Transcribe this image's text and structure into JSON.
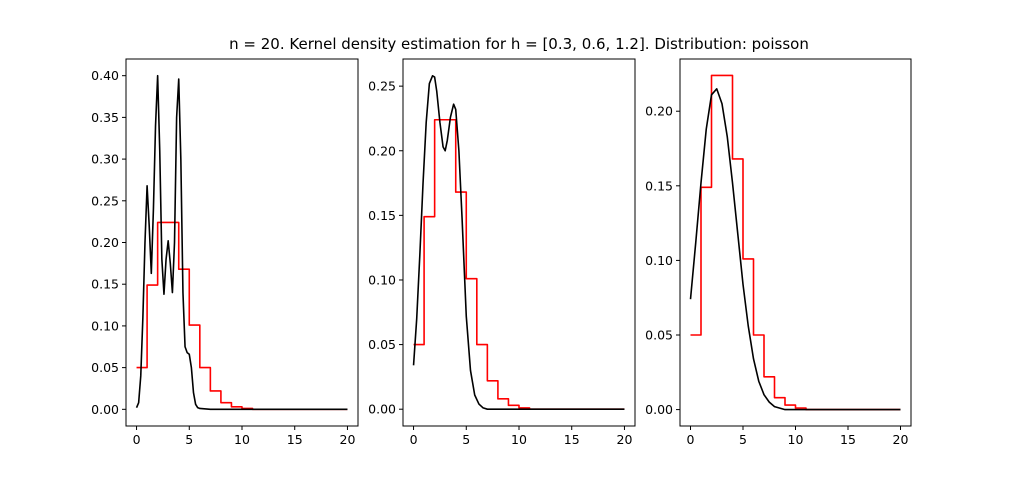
{
  "figure": {
    "title": "n = 20. Kernel density estimation for h = [0.3, 0.6, 1.2]. Distribution: poisson",
    "colors": {
      "pmf": "#ff0000",
      "kde": "#000000",
      "axes": "#000000",
      "background": "#ffffff"
    }
  },
  "chart_data": [
    {
      "type": "line",
      "bandwidth": 0.3,
      "xlim": [
        -1,
        21
      ],
      "ylim": [
        -0.02,
        0.42
      ],
      "xticks": [
        0,
        5,
        10,
        15,
        20
      ],
      "yticks": [
        0.0,
        0.05,
        0.1,
        0.15,
        0.2,
        0.25,
        0.3,
        0.35,
        0.4
      ],
      "ytick_labels": [
        "0.00",
        "0.05",
        "0.10",
        "0.15",
        "0.20",
        "0.25",
        "0.30",
        "0.35",
        "0.40"
      ],
      "series": [
        {
          "kind": "step",
          "color": "#ff0000",
          "x": [
            0,
            1,
            1,
            2,
            2,
            3,
            3,
            4,
            4,
            5,
            5,
            6,
            6,
            7,
            7,
            8,
            8,
            9,
            9,
            10,
            10,
            11,
            11,
            20
          ],
          "y": [
            0.05,
            0.05,
            0.149,
            0.149,
            0.224,
            0.224,
            0.224,
            0.224,
            0.168,
            0.168,
            0.101,
            0.101,
            0.05,
            0.05,
            0.022,
            0.022,
            0.008,
            0.008,
            0.003,
            0.003,
            0.001,
            0.001,
            0.0,
            0.0
          ]
        },
        {
          "kind": "line",
          "color": "#000000",
          "x": [
            0,
            0.2,
            0.4,
            0.6,
            0.8,
            1.0,
            1.2,
            1.4,
            1.6,
            1.8,
            2.0,
            2.2,
            2.4,
            2.6,
            2.8,
            3.0,
            3.2,
            3.4,
            3.6,
            3.8,
            4.0,
            4.2,
            4.4,
            4.6,
            4.8,
            5.0,
            5.2,
            5.4,
            5.6,
            5.8,
            6.0,
            7.0,
            10.0,
            15.0,
            20.0
          ],
          "y": [
            0.002,
            0.008,
            0.04,
            0.11,
            0.2,
            0.268,
            0.22,
            0.163,
            0.24,
            0.34,
            0.4,
            0.31,
            0.18,
            0.138,
            0.18,
            0.202,
            0.175,
            0.14,
            0.2,
            0.35,
            0.396,
            0.3,
            0.14,
            0.075,
            0.068,
            0.066,
            0.05,
            0.02,
            0.006,
            0.002,
            0.001,
            0.0,
            0.0,
            0.0,
            0.0
          ]
        }
      ]
    },
    {
      "type": "line",
      "bandwidth": 0.6,
      "xlim": [
        -1,
        21
      ],
      "ylim": [
        -0.013,
        0.271
      ],
      "xticks": [
        0,
        5,
        10,
        15,
        20
      ],
      "yticks": [
        0.0,
        0.05,
        0.1,
        0.15,
        0.2,
        0.25
      ],
      "ytick_labels": [
        "0.00",
        "0.05",
        "0.10",
        "0.15",
        "0.20",
        "0.25"
      ],
      "series": [
        {
          "kind": "step",
          "color": "#ff0000",
          "x": [
            0,
            1,
            1,
            2,
            2,
            3,
            3,
            4,
            4,
            5,
            5,
            6,
            6,
            7,
            7,
            8,
            8,
            9,
            9,
            10,
            10,
            11,
            11,
            20
          ],
          "y": [
            0.05,
            0.05,
            0.149,
            0.149,
            0.224,
            0.224,
            0.224,
            0.224,
            0.168,
            0.168,
            0.101,
            0.101,
            0.05,
            0.05,
            0.022,
            0.022,
            0.008,
            0.008,
            0.003,
            0.003,
            0.001,
            0.001,
            0.0,
            0.0
          ]
        },
        {
          "kind": "line",
          "color": "#000000",
          "x": [
            0,
            0.3,
            0.6,
            0.9,
            1.2,
            1.5,
            1.8,
            2.0,
            2.2,
            2.5,
            2.8,
            3.0,
            3.2,
            3.5,
            3.8,
            4.0,
            4.3,
            4.6,
            5.0,
            5.4,
            5.8,
            6.2,
            6.6,
            7.0,
            8.0,
            10.0,
            15.0,
            20.0
          ],
          "y": [
            0.034,
            0.07,
            0.12,
            0.175,
            0.222,
            0.252,
            0.258,
            0.257,
            0.246,
            0.222,
            0.203,
            0.2,
            0.208,
            0.226,
            0.236,
            0.232,
            0.2,
            0.148,
            0.072,
            0.03,
            0.011,
            0.004,
            0.001,
            0.0,
            0.0,
            0.0,
            0.0,
            0.0
          ]
        }
      ]
    },
    {
      "type": "line",
      "bandwidth": 1.2,
      "xlim": [
        -1,
        21
      ],
      "ylim": [
        -0.011,
        0.235
      ],
      "xticks": [
        0,
        5,
        10,
        15,
        20
      ],
      "yticks": [
        0.0,
        0.05,
        0.1,
        0.15,
        0.2
      ],
      "ytick_labels": [
        "0.00",
        "0.05",
        "0.10",
        "0.15",
        "0.20"
      ],
      "series": [
        {
          "kind": "step",
          "color": "#ff0000",
          "x": [
            0,
            1,
            1,
            2,
            2,
            3,
            3,
            4,
            4,
            5,
            5,
            6,
            6,
            7,
            7,
            8,
            8,
            9,
            9,
            10,
            10,
            11,
            11,
            20
          ],
          "y": [
            0.05,
            0.05,
            0.149,
            0.149,
            0.224,
            0.224,
            0.224,
            0.224,
            0.168,
            0.168,
            0.101,
            0.101,
            0.05,
            0.05,
            0.022,
            0.022,
            0.008,
            0.008,
            0.003,
            0.003,
            0.001,
            0.001,
            0.0,
            0.0
          ]
        },
        {
          "kind": "line",
          "color": "#000000",
          "x": [
            0,
            0.5,
            1.0,
            1.5,
            2.0,
            2.5,
            3.0,
            3.5,
            4.0,
            4.5,
            5.0,
            5.5,
            6.0,
            6.5,
            7.0,
            7.5,
            8.0,
            8.5,
            9.0,
            10.0,
            11.0,
            12.0,
            15.0,
            20.0
          ],
          "y": [
            0.074,
            0.112,
            0.152,
            0.188,
            0.211,
            0.215,
            0.205,
            0.183,
            0.152,
            0.118,
            0.084,
            0.056,
            0.034,
            0.019,
            0.01,
            0.005,
            0.002,
            0.001,
            0.0,
            0.0,
            0.0,
            0.0,
            0.0,
            0.0
          ]
        }
      ]
    }
  ]
}
